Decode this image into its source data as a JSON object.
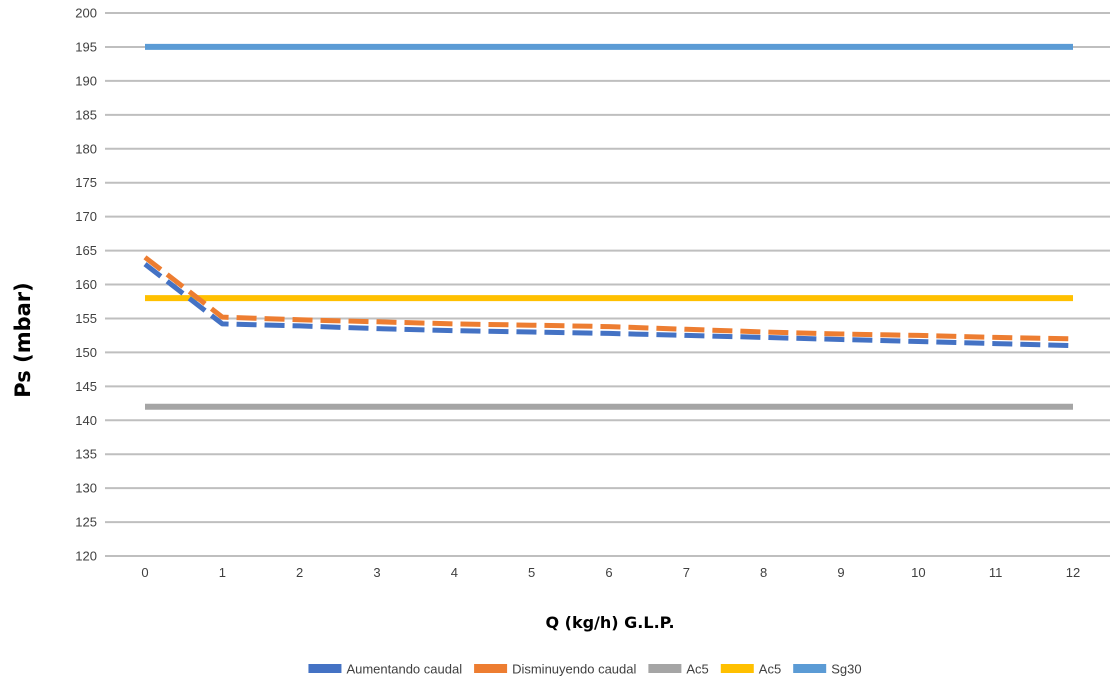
{
  "chart_data": {
    "type": "line",
    "title": "",
    "xlabel": "Q (kg/h) G.L.P.",
    "ylabel": "Ps (mbar)",
    "categories": [
      "0",
      "1",
      "2",
      "3",
      "4",
      "5",
      "6",
      "7",
      "8",
      "9",
      "10",
      "11",
      "12"
    ],
    "ylim": [
      120,
      200
    ],
    "ytick_step": 5,
    "grid": "horizontal",
    "legend_position": "bottom",
    "series": [
      {
        "name": "Aumentando caudal",
        "color": "#4472C4",
        "style": "dashed",
        "values": [
          163,
          154.2,
          153.9,
          153.5,
          153.2,
          153.0,
          152.8,
          152.5,
          152.2,
          151.9,
          151.6,
          151.3,
          151.0
        ]
      },
      {
        "name": "Disminuyendo caudal",
        "color": "#ED7D31",
        "style": "dashed",
        "values": [
          164,
          155.2,
          154.8,
          154.5,
          154.2,
          154.0,
          153.8,
          153.4,
          153.0,
          152.7,
          152.5,
          152.2,
          152.0
        ]
      },
      {
        "name": "Ac5",
        "color": "#A5A5A5",
        "style": "solid",
        "values": [
          142,
          142,
          142,
          142,
          142,
          142,
          142,
          142,
          142,
          142,
          142,
          142,
          142
        ]
      },
      {
        "name": "Ac5",
        "color": "#FFC000",
        "style": "solid",
        "values": [
          158,
          158,
          158,
          158,
          158,
          158,
          158,
          158,
          158,
          158,
          158,
          158,
          158
        ]
      },
      {
        "name": "Sg30",
        "color": "#5B9BD5",
        "style": "solid",
        "values": [
          195,
          195,
          195,
          195,
          195,
          195,
          195,
          195,
          195,
          195,
          195,
          195,
          195
        ]
      }
    ]
  }
}
